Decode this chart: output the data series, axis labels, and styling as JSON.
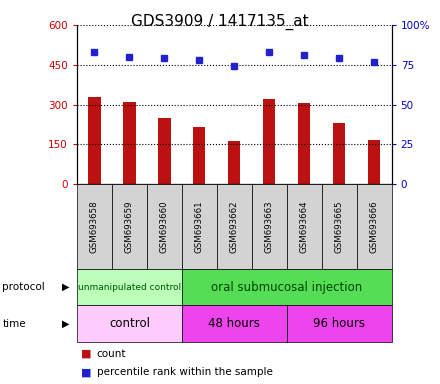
{
  "title": "GDS3909 / 1417135_at",
  "samples": [
    "GSM693658",
    "GSM693659",
    "GSM693660",
    "GSM693661",
    "GSM693662",
    "GSM693663",
    "GSM693664",
    "GSM693665",
    "GSM693666"
  ],
  "counts": [
    330,
    310,
    248,
    215,
    162,
    323,
    307,
    232,
    168
  ],
  "percentile_ranks": [
    83,
    80,
    79,
    78,
    74,
    83,
    81,
    79,
    77
  ],
  "bar_color": "#bb1111",
  "dot_color": "#2222cc",
  "ylim_left": [
    0,
    600
  ],
  "ylim_right": [
    0,
    100
  ],
  "yticks_left": [
    0,
    150,
    300,
    450,
    600
  ],
  "ytick_labels_left": [
    "0",
    "150",
    "300",
    "450",
    "600"
  ],
  "yticks_right": [
    0,
    25,
    50,
    75,
    100
  ],
  "ytick_labels_right": [
    "0",
    "25",
    "50",
    "75",
    "100%"
  ],
  "protocol_groups": [
    {
      "label": "unmanipulated control",
      "start": 0,
      "end": 3,
      "color": "#bbffbb"
    },
    {
      "label": "oral submucosal injection",
      "start": 3,
      "end": 9,
      "color": "#55dd55"
    }
  ],
  "time_groups": [
    {
      "label": "control",
      "start": 0,
      "end": 3,
      "color": "#ffccff"
    },
    {
      "label": "48 hours",
      "start": 3,
      "end": 6,
      "color": "#ee44ee"
    },
    {
      "label": "96 hours",
      "start": 6,
      "end": 9,
      "color": "#ee44ee"
    }
  ],
  "legend_count_label": "count",
  "legend_pct_label": "percentile rank within the sample",
  "background_color": "#ffffff",
  "plot_bg_color": "#ffffff",
  "title_fontsize": 11,
  "axis_label_color_left": "#cc0000",
  "axis_label_color_right": "#0000cc",
  "bar_width": 0.35
}
